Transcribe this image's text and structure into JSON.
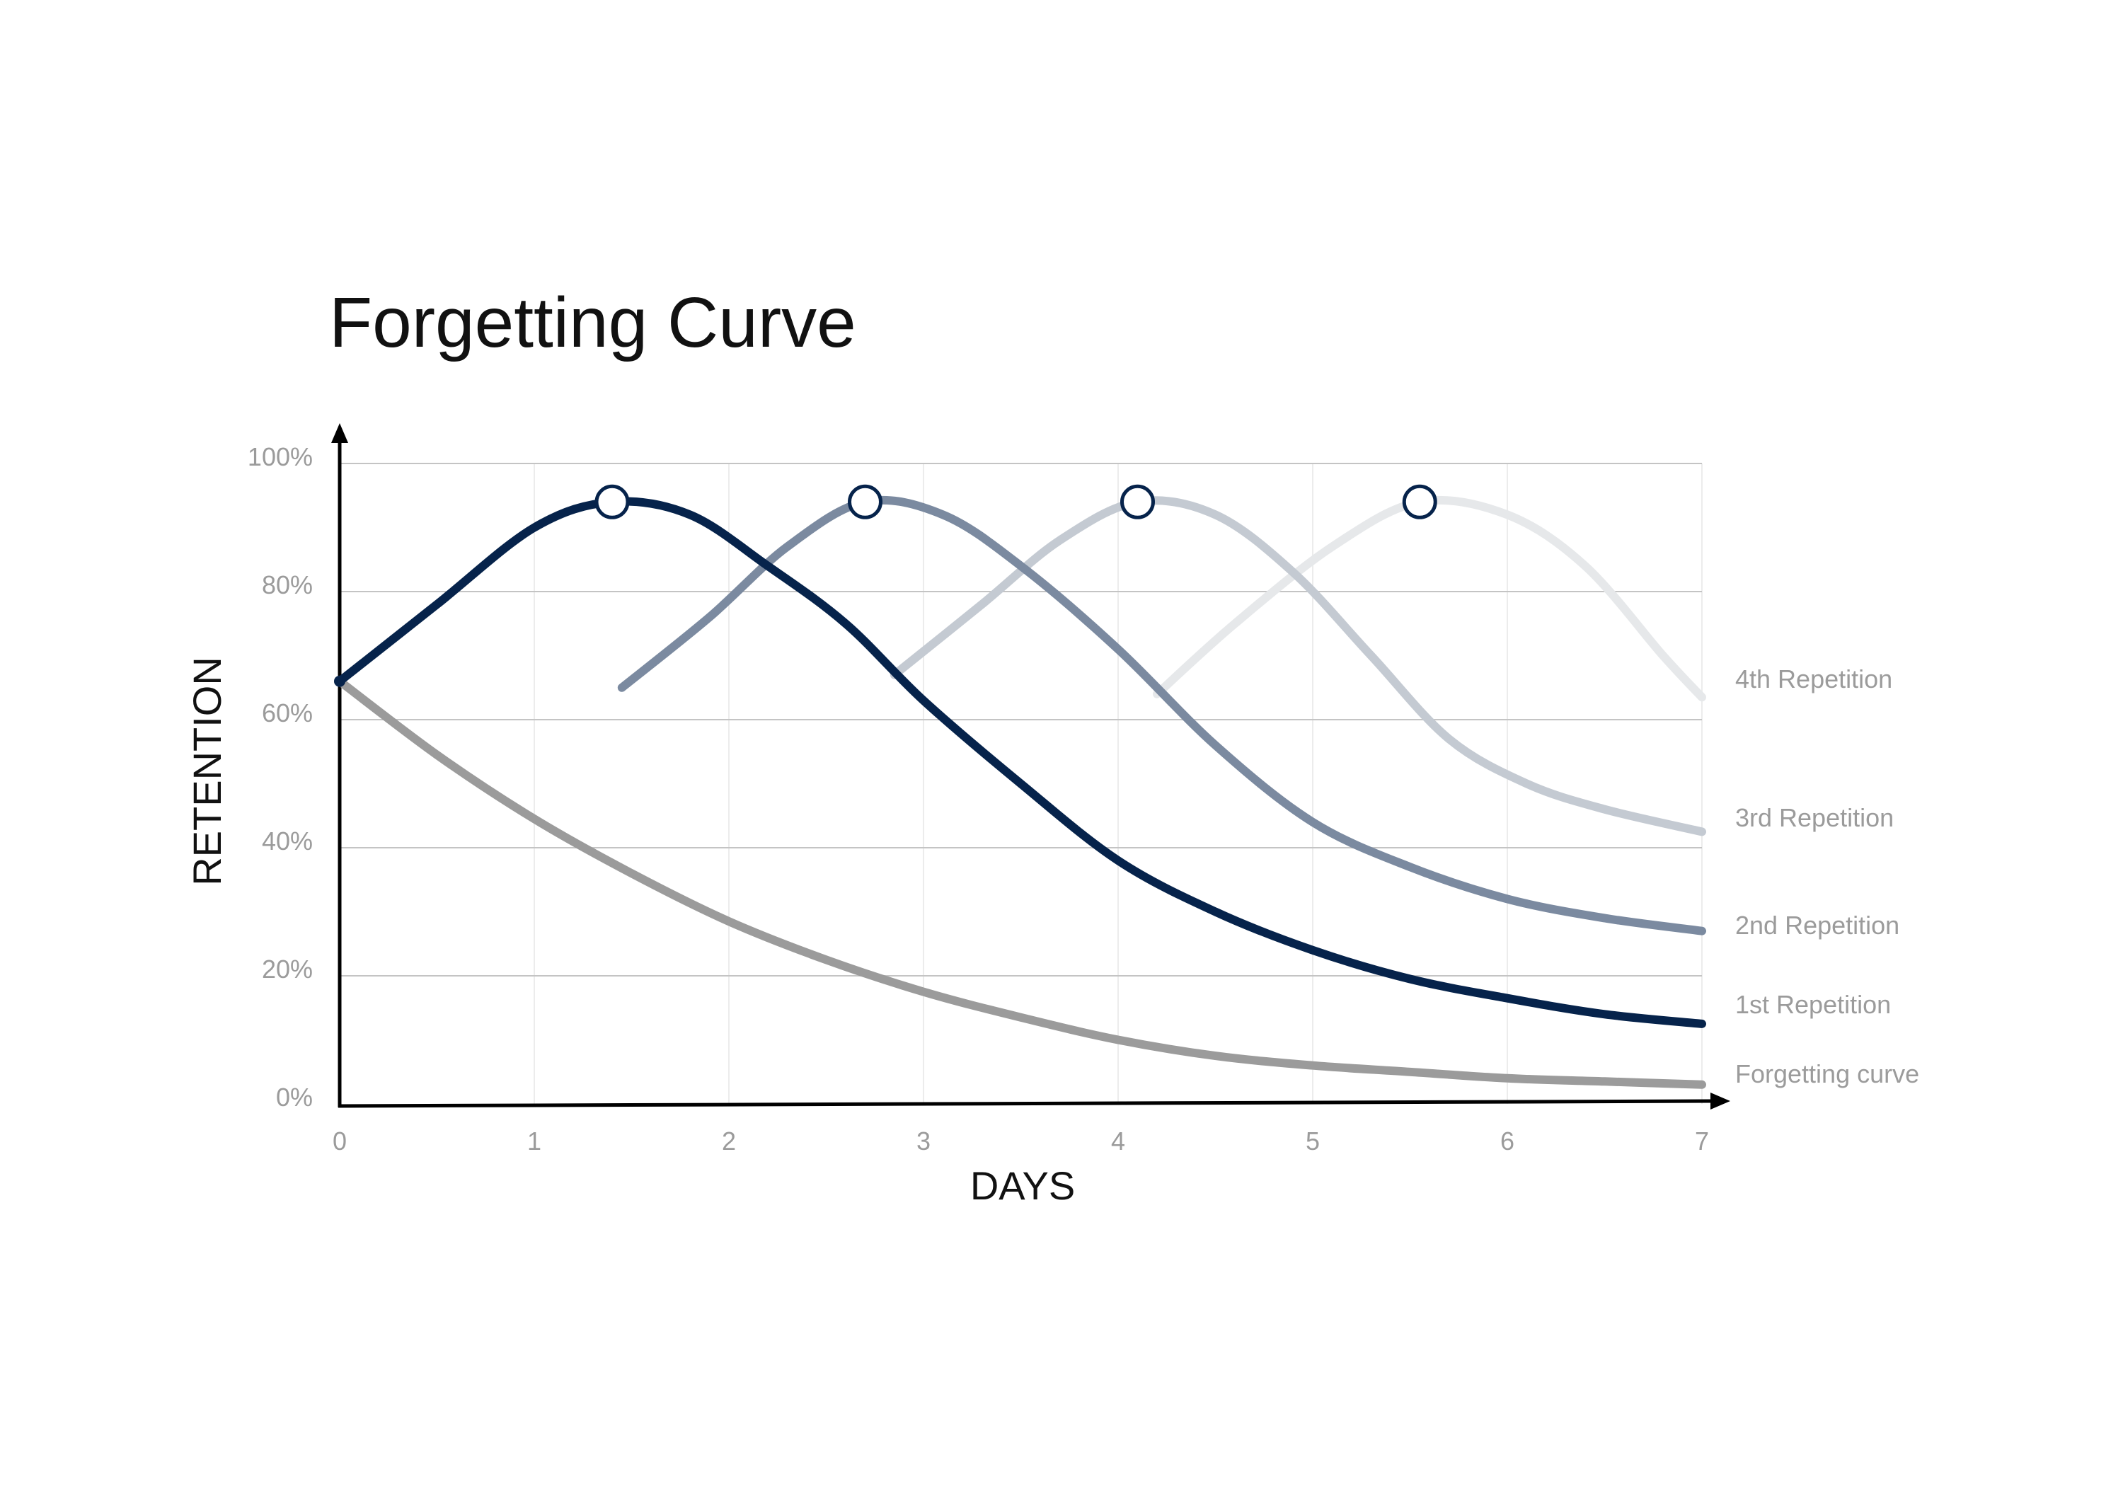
{
  "chart_data": {
    "type": "line",
    "title": "Forgetting Curve",
    "xlabel": "DAYS",
    "ylabel": "RETENTION",
    "xlim": [
      0,
      7
    ],
    "ylim": [
      0,
      100
    ],
    "x_ticks": [
      "0",
      "1",
      "2",
      "3",
      "4",
      "5",
      "6",
      "7"
    ],
    "y_ticks": [
      "0%",
      "20%",
      "40%",
      "60%",
      "80%",
      "100%"
    ],
    "grid": true,
    "series": [
      {
        "name": "Forgetting curve",
        "color": "#9b9b9b",
        "points": [
          [
            0,
            66
          ],
          [
            0.5,
            54.5
          ],
          [
            1,
            44.5
          ],
          [
            1.5,
            36
          ],
          [
            2,
            28.5
          ],
          [
            2.5,
            22.5
          ],
          [
            3,
            17.5
          ],
          [
            3.5,
            13.5
          ],
          [
            4,
            10
          ],
          [
            4.5,
            7.5
          ],
          [
            5,
            6
          ],
          [
            5.5,
            5
          ],
          [
            6,
            4
          ],
          [
            6.5,
            3.5
          ],
          [
            7,
            3
          ]
        ]
      },
      {
        "name": "1st Repetition",
        "color": "#06234b",
        "points": [
          [
            0,
            66
          ],
          [
            0.5,
            78
          ],
          [
            1,
            90
          ],
          [
            1.4,
            94
          ],
          [
            1.8,
            92
          ],
          [
            2.2,
            84
          ],
          [
            2.6,
            75
          ],
          [
            3,
            63
          ],
          [
            3.5,
            50
          ],
          [
            4,
            38
          ],
          [
            4.5,
            30
          ],
          [
            5,
            24
          ],
          [
            5.5,
            19.5
          ],
          [
            6,
            16.5
          ],
          [
            6.5,
            14
          ],
          [
            7,
            12.5
          ]
        ]
      },
      {
        "name": "2nd Repetition",
        "color": "#7b8aa0",
        "points": [
          [
            1.45,
            65
          ],
          [
            1.9,
            76
          ],
          [
            2.3,
            87
          ],
          [
            2.7,
            94
          ],
          [
            3.1,
            92
          ],
          [
            3.5,
            84
          ],
          [
            4,
            71
          ],
          [
            4.5,
            56
          ],
          [
            5,
            44
          ],
          [
            5.5,
            37
          ],
          [
            6,
            32
          ],
          [
            6.5,
            29
          ],
          [
            7,
            27
          ]
        ]
      },
      {
        "name": "3rd Repetition",
        "color": "#c4cad2",
        "points": [
          [
            2.85,
            67
          ],
          [
            3.3,
            78
          ],
          [
            3.7,
            88
          ],
          [
            4.1,
            94
          ],
          [
            4.5,
            92
          ],
          [
            4.9,
            83
          ],
          [
            5.3,
            70
          ],
          [
            5.7,
            57
          ],
          [
            6.1,
            50
          ],
          [
            6.5,
            46
          ],
          [
            7,
            42.5
          ]
        ]
      },
      {
        "name": "4th Repetition",
        "color": "#e6e8ea",
        "points": [
          [
            4.2,
            64
          ],
          [
            4.6,
            75
          ],
          [
            5.1,
            87
          ],
          [
            5.55,
            94
          ],
          [
            6,
            92
          ],
          [
            6.4,
            84
          ],
          [
            6.8,
            70
          ],
          [
            7,
            63.5
          ]
        ]
      }
    ],
    "markers": [
      {
        "x": 1.4,
        "y": 94
      },
      {
        "x": 2.7,
        "y": 94
      },
      {
        "x": 4.1,
        "y": 94
      },
      {
        "x": 5.55,
        "y": 94
      }
    ]
  }
}
